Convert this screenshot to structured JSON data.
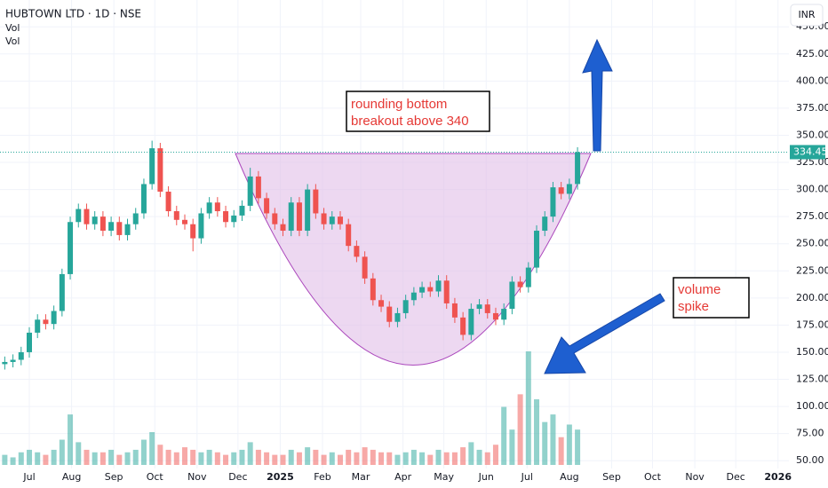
{
  "chart_data": {
    "type": "candlestick",
    "title": "HUBTOWN LTD · 1D · NSE",
    "indicators": [
      "Vol",
      "Vol"
    ],
    "currency": "INR",
    "annotations": [
      "rounding bottom",
      "breakout above 340",
      "volume",
      "spike"
    ],
    "up_color": "#26a69a",
    "down_color": "#ef5350",
    "x": [
      -18,
      -12,
      -6,
      0,
      6,
      12,
      18,
      24,
      30,
      36,
      42,
      48,
      54,
      60,
      66,
      72,
      78,
      84,
      90,
      96,
      102,
      108,
      114,
      120,
      126,
      132,
      138,
      144,
      150,
      156,
      162,
      168,
      174,
      180,
      186,
      192,
      198,
      204,
      210,
      216,
      222,
      228,
      234,
      240,
      246,
      252,
      258,
      264,
      270,
      276,
      282,
      288,
      294,
      300,
      306,
      312,
      318,
      324,
      330,
      336,
      342,
      348,
      354,
      360,
      366,
      372,
      378,
      384,
      390,
      396,
      402
    ],
    "open": [
      139,
      141,
      143,
      150,
      168,
      180,
      176,
      188,
      222,
      270,
      282,
      268,
      275,
      262,
      270,
      258,
      268,
      278,
      305,
      338,
      298,
      280,
      272,
      268,
      255,
      278,
      288,
      280,
      270,
      276,
      285,
      312,
      292,
      278,
      268,
      262,
      288,
      262,
      300,
      278,
      268,
      275,
      268,
      248,
      238,
      218,
      198,
      192,
      178,
      186,
      198,
      205,
      210,
      206,
      216,
      195,
      182,
      166,
      190,
      194,
      186,
      180,
      190,
      215,
      210,
      228,
      262,
      275,
      302,
      296,
      305
    ],
    "high": [
      146,
      148,
      155,
      173,
      185,
      185,
      193,
      227,
      275,
      287,
      287,
      280,
      280,
      275,
      275,
      273,
      283,
      310,
      345,
      343,
      303,
      285,
      277,
      273,
      283,
      293,
      293,
      285,
      281,
      290,
      320,
      317,
      297,
      283,
      273,
      293,
      293,
      305,
      305,
      283,
      280,
      280,
      273,
      253,
      243,
      223,
      203,
      197,
      191,
      203,
      210,
      215,
      215,
      221,
      221,
      200,
      187,
      195,
      199,
      199,
      191,
      195,
      220,
      220,
      233,
      267,
      280,
      307,
      307,
      310,
      339
    ],
    "low": [
      134,
      136,
      138,
      145,
      163,
      171,
      171,
      183,
      217,
      265,
      263,
      263,
      257,
      257,
      253,
      253,
      263,
      273,
      300,
      293,
      275,
      267,
      263,
      243,
      250,
      273,
      275,
      265,
      265,
      271,
      280,
      287,
      273,
      263,
      257,
      257,
      257,
      257,
      273,
      263,
      263,
      263,
      243,
      233,
      213,
      193,
      187,
      173,
      173,
      181,
      193,
      200,
      201,
      201,
      190,
      177,
      161,
      161,
      185,
      181,
      175,
      175,
      185,
      205,
      205,
      223,
      257,
      270,
      291,
      291,
      300
    ],
    "close": [
      141,
      143,
      150,
      168,
      180,
      176,
      188,
      222,
      270,
      282,
      268,
      275,
      262,
      270,
      258,
      268,
      278,
      305,
      338,
      298,
      280,
      272,
      268,
      255,
      278,
      288,
      280,
      270,
      276,
      285,
      312,
      292,
      278,
      268,
      262,
      288,
      262,
      300,
      278,
      268,
      275,
      268,
      248,
      238,
      218,
      198,
      192,
      178,
      186,
      198,
      205,
      210,
      206,
      216,
      195,
      182,
      166,
      190,
      194,
      186,
      180,
      190,
      215,
      210,
      228,
      262,
      275,
      302,
      296,
      305,
      334.45
    ],
    "volume": [
      0.4,
      0.3,
      0.5,
      0.6,
      0.5,
      0.4,
      0.6,
      1.0,
      2.0,
      0.9,
      0.6,
      0.5,
      0.5,
      0.6,
      0.4,
      0.5,
      0.6,
      1.0,
      1.3,
      0.8,
      0.6,
      0.5,
      0.7,
      0.6,
      0.5,
      0.6,
      0.5,
      0.4,
      0.5,
      0.6,
      0.9,
      0.6,
      0.5,
      0.4,
      0.4,
      0.6,
      0.5,
      0.7,
      0.6,
      0.4,
      0.5,
      0.4,
      0.6,
      0.5,
      0.7,
      0.6,
      0.5,
      0.5,
      0.4,
      0.5,
      0.6,
      0.5,
      0.4,
      0.6,
      0.5,
      0.5,
      0.7,
      0.9,
      0.6,
      0.5,
      0.8,
      2.3,
      1.4,
      2.8,
      4.5,
      2.6,
      1.7,
      2.0,
      1.1,
      1.6,
      1.4
    ],
    "xlim": [
      -21.5,
      557
    ],
    "xticks": [
      {
        "value": 0,
        "label": "Jul"
      },
      {
        "value": 31,
        "label": "Aug"
      },
      {
        "value": 62,
        "label": "Sep"
      },
      {
        "value": 92,
        "label": "Oct"
      },
      {
        "value": 123,
        "label": "Nov"
      },
      {
        "value": 153,
        "label": "Dec"
      },
      {
        "value": 184,
        "label": "2025"
      },
      {
        "value": 215,
        "label": "Feb"
      },
      {
        "value": 243,
        "label": "Mar"
      },
      {
        "value": 274,
        "label": "Apr"
      },
      {
        "value": 304,
        "label": "May"
      },
      {
        "value": 335,
        "label": "Jun"
      },
      {
        "value": 365,
        "label": "Jul"
      },
      {
        "value": 396,
        "label": "Aug"
      },
      {
        "value": 427,
        "label": "Sep"
      },
      {
        "value": 457,
        "label": "Oct"
      },
      {
        "value": 488,
        "label": "Nov"
      },
      {
        "value": 518,
        "label": "Dec"
      },
      {
        "value": 549,
        "label": "2026"
      }
    ],
    "ylim": [
      42.8,
      474.7
    ],
    "yticks": [
      {
        "value": 50,
        "label": "50.00"
      },
      {
        "value": 75,
        "label": "75.00"
      },
      {
        "value": 100,
        "label": "100.00"
      },
      {
        "value": 125,
        "label": "125.00"
      },
      {
        "value": 150,
        "label": "150.00"
      },
      {
        "value": 175,
        "label": "175.00"
      },
      {
        "value": 200,
        "label": "200.00"
      },
      {
        "value": 225,
        "label": "225.00"
      },
      {
        "value": 250,
        "label": "250.00"
      },
      {
        "value": 275,
        "label": "275.00"
      },
      {
        "value": 300,
        "label": "300.00"
      },
      {
        "value": 325,
        "label": "325.00"
      },
      {
        "value": 350,
        "label": "350.00"
      },
      {
        "value": 375,
        "label": "375.00"
      },
      {
        "value": 400,
        "label": "400.00"
      },
      {
        "value": 425,
        "label": "425.00"
      },
      {
        "value": 450,
        "label": "450.00"
      }
    ],
    "grid": true
  }
}
